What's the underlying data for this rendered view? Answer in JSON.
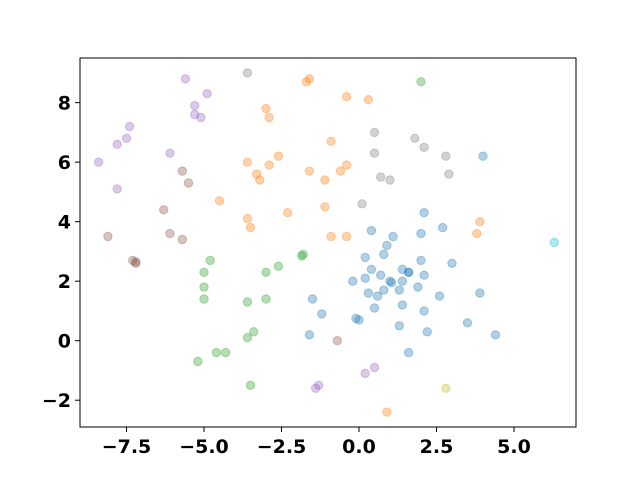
{
  "chart_data": {
    "type": "scatter",
    "title": "",
    "xlabel": "",
    "ylabel": "",
    "xlim": [
      -9.0,
      7.0
    ],
    "ylim": [
      -2.9,
      9.5
    ],
    "xticks": [
      -7.5,
      -5.0,
      -2.5,
      0.0,
      2.5,
      5.0
    ],
    "xtick_labels": [
      "−7.5",
      "−5.0",
      "−2.5",
      "0.0",
      "2.5",
      "5.0"
    ],
    "yticks": [
      -2,
      0,
      2,
      4,
      6,
      8
    ],
    "ytick_labels": [
      "−2",
      "0",
      "2",
      "4",
      "6",
      "8"
    ],
    "grid": false,
    "marker_alpha": 0.35,
    "series": [
      {
        "color": "#1f77b4",
        "points": [
          [
            0.2,
            2.8
          ],
          [
            0.4,
            3.7
          ],
          [
            0.9,
            3.2
          ],
          [
            1.1,
            3.5
          ],
          [
            0.8,
            2.9
          ],
          [
            0.4,
            2.4
          ],
          [
            -0.2,
            2.0
          ],
          [
            0.2,
            2.1
          ],
          [
            0.7,
            2.2
          ],
          [
            1.4,
            2.4
          ],
          [
            1.6,
            2.3
          ],
          [
            2.1,
            2.2
          ],
          [
            2.0,
            2.7
          ],
          [
            2.0,
            3.6
          ],
          [
            2.1,
            4.3
          ],
          [
            2.7,
            3.8
          ],
          [
            3.0,
            2.6
          ],
          [
            1.4,
            2.0
          ],
          [
            1.0,
            2.0
          ],
          [
            0.8,
            1.7
          ],
          [
            0.6,
            1.5
          ],
          [
            0.3,
            1.6
          ],
          [
            1.3,
            1.7
          ],
          [
            1.9,
            1.8
          ],
          [
            2.6,
            1.5
          ],
          [
            1.4,
            1.2
          ],
          [
            0.5,
            1.1
          ],
          [
            2.1,
            1.0
          ],
          [
            1.3,
            0.5
          ],
          [
            2.2,
            0.3
          ],
          [
            3.5,
            0.6
          ],
          [
            4.4,
            0.2
          ],
          [
            3.9,
            1.6
          ],
          [
            4.0,
            6.2
          ],
          [
            1.6,
            -0.4
          ],
          [
            0.0,
            0.7
          ],
          [
            -0.1,
            0.75
          ],
          [
            -1.2,
            0.9
          ],
          [
            -1.5,
            1.4
          ],
          [
            -1.6,
            0.2
          ],
          [
            1.05,
            1.95
          ],
          [
            1.6,
            2.3
          ]
        ]
      },
      {
        "color": "#ff7f0e",
        "points": [
          [
            -1.7,
            8.7
          ],
          [
            -1.6,
            8.8
          ],
          [
            -0.4,
            8.2
          ],
          [
            0.3,
            8.1
          ],
          [
            -3.0,
            7.8
          ],
          [
            -2.9,
            7.5
          ],
          [
            -0.9,
            6.7
          ],
          [
            -2.6,
            6.2
          ],
          [
            -3.6,
            6.0
          ],
          [
            -2.9,
            5.9
          ],
          [
            -3.3,
            5.6
          ],
          [
            -3.2,
            5.4
          ],
          [
            -1.6,
            5.7
          ],
          [
            -0.6,
            5.7
          ],
          [
            -0.4,
            5.9
          ],
          [
            -1.1,
            5.4
          ],
          [
            -4.5,
            4.7
          ],
          [
            -2.3,
            4.3
          ],
          [
            -1.1,
            4.5
          ],
          [
            -3.6,
            4.1
          ],
          [
            -3.5,
            3.8
          ],
          [
            -0.9,
            3.5
          ],
          [
            -0.4,
            3.5
          ],
          [
            3.9,
            4.0
          ],
          [
            3.8,
            3.6
          ],
          [
            0.9,
            -2.4
          ]
        ]
      },
      {
        "color": "#2ca02c",
        "points": [
          [
            -1.8,
            2.9
          ],
          [
            -1.85,
            2.85
          ],
          [
            -2.6,
            2.5
          ],
          [
            -3.0,
            2.3
          ],
          [
            -4.8,
            2.7
          ],
          [
            -5.0,
            2.3
          ],
          [
            -5.0,
            1.8
          ],
          [
            -5.0,
            1.4
          ],
          [
            -3.0,
            1.4
          ],
          [
            -3.6,
            1.3
          ],
          [
            -3.4,
            0.3
          ],
          [
            -3.6,
            0.1
          ],
          [
            -4.6,
            -0.4
          ],
          [
            -4.3,
            -0.4
          ],
          [
            -5.2,
            -0.7
          ],
          [
            -3.5,
            -1.5
          ],
          [
            2.0,
            8.7
          ]
        ]
      },
      {
        "color": "#9467bd",
        "points": [
          [
            -5.6,
            8.8
          ],
          [
            -4.9,
            8.3
          ],
          [
            -5.3,
            7.9
          ],
          [
            -5.3,
            7.6
          ],
          [
            -5.1,
            7.5
          ],
          [
            -7.4,
            7.2
          ],
          [
            -7.5,
            6.8
          ],
          [
            -7.8,
            6.6
          ],
          [
            -8.4,
            6.0
          ],
          [
            -6.1,
            6.3
          ],
          [
            -7.8,
            5.1
          ],
          [
            -1.3,
            -1.5
          ],
          [
            -1.4,
            -1.6
          ],
          [
            0.2,
            -1.1
          ],
          [
            0.5,
            -0.9
          ]
        ]
      },
      {
        "color": "#8c564b",
        "points": [
          [
            -5.7,
            5.7
          ],
          [
            -5.5,
            5.3
          ],
          [
            -6.3,
            4.4
          ],
          [
            -6.1,
            3.6
          ],
          [
            -5.7,
            3.4
          ],
          [
            -8.1,
            3.5
          ],
          [
            -7.3,
            2.7
          ],
          [
            -7.2,
            2.6
          ],
          [
            -7.2,
            2.65
          ],
          [
            -0.7,
            0.0
          ]
        ]
      },
      {
        "color": "#7f7f7f",
        "points": [
          [
            -3.6,
            9.0
          ],
          [
            0.5,
            7.0
          ],
          [
            1.8,
            6.8
          ],
          [
            2.1,
            6.5
          ],
          [
            0.5,
            6.3
          ],
          [
            2.8,
            6.2
          ],
          [
            2.9,
            5.6
          ],
          [
            0.7,
            5.5
          ],
          [
            1.0,
            5.4
          ],
          [
            0.1,
            4.6
          ]
        ]
      },
      {
        "color": "#bcbd22",
        "points": [
          [
            2.8,
            -1.6
          ]
        ]
      },
      {
        "color": "#17becf",
        "points": [
          [
            6.3,
            3.3
          ]
        ]
      }
    ]
  }
}
